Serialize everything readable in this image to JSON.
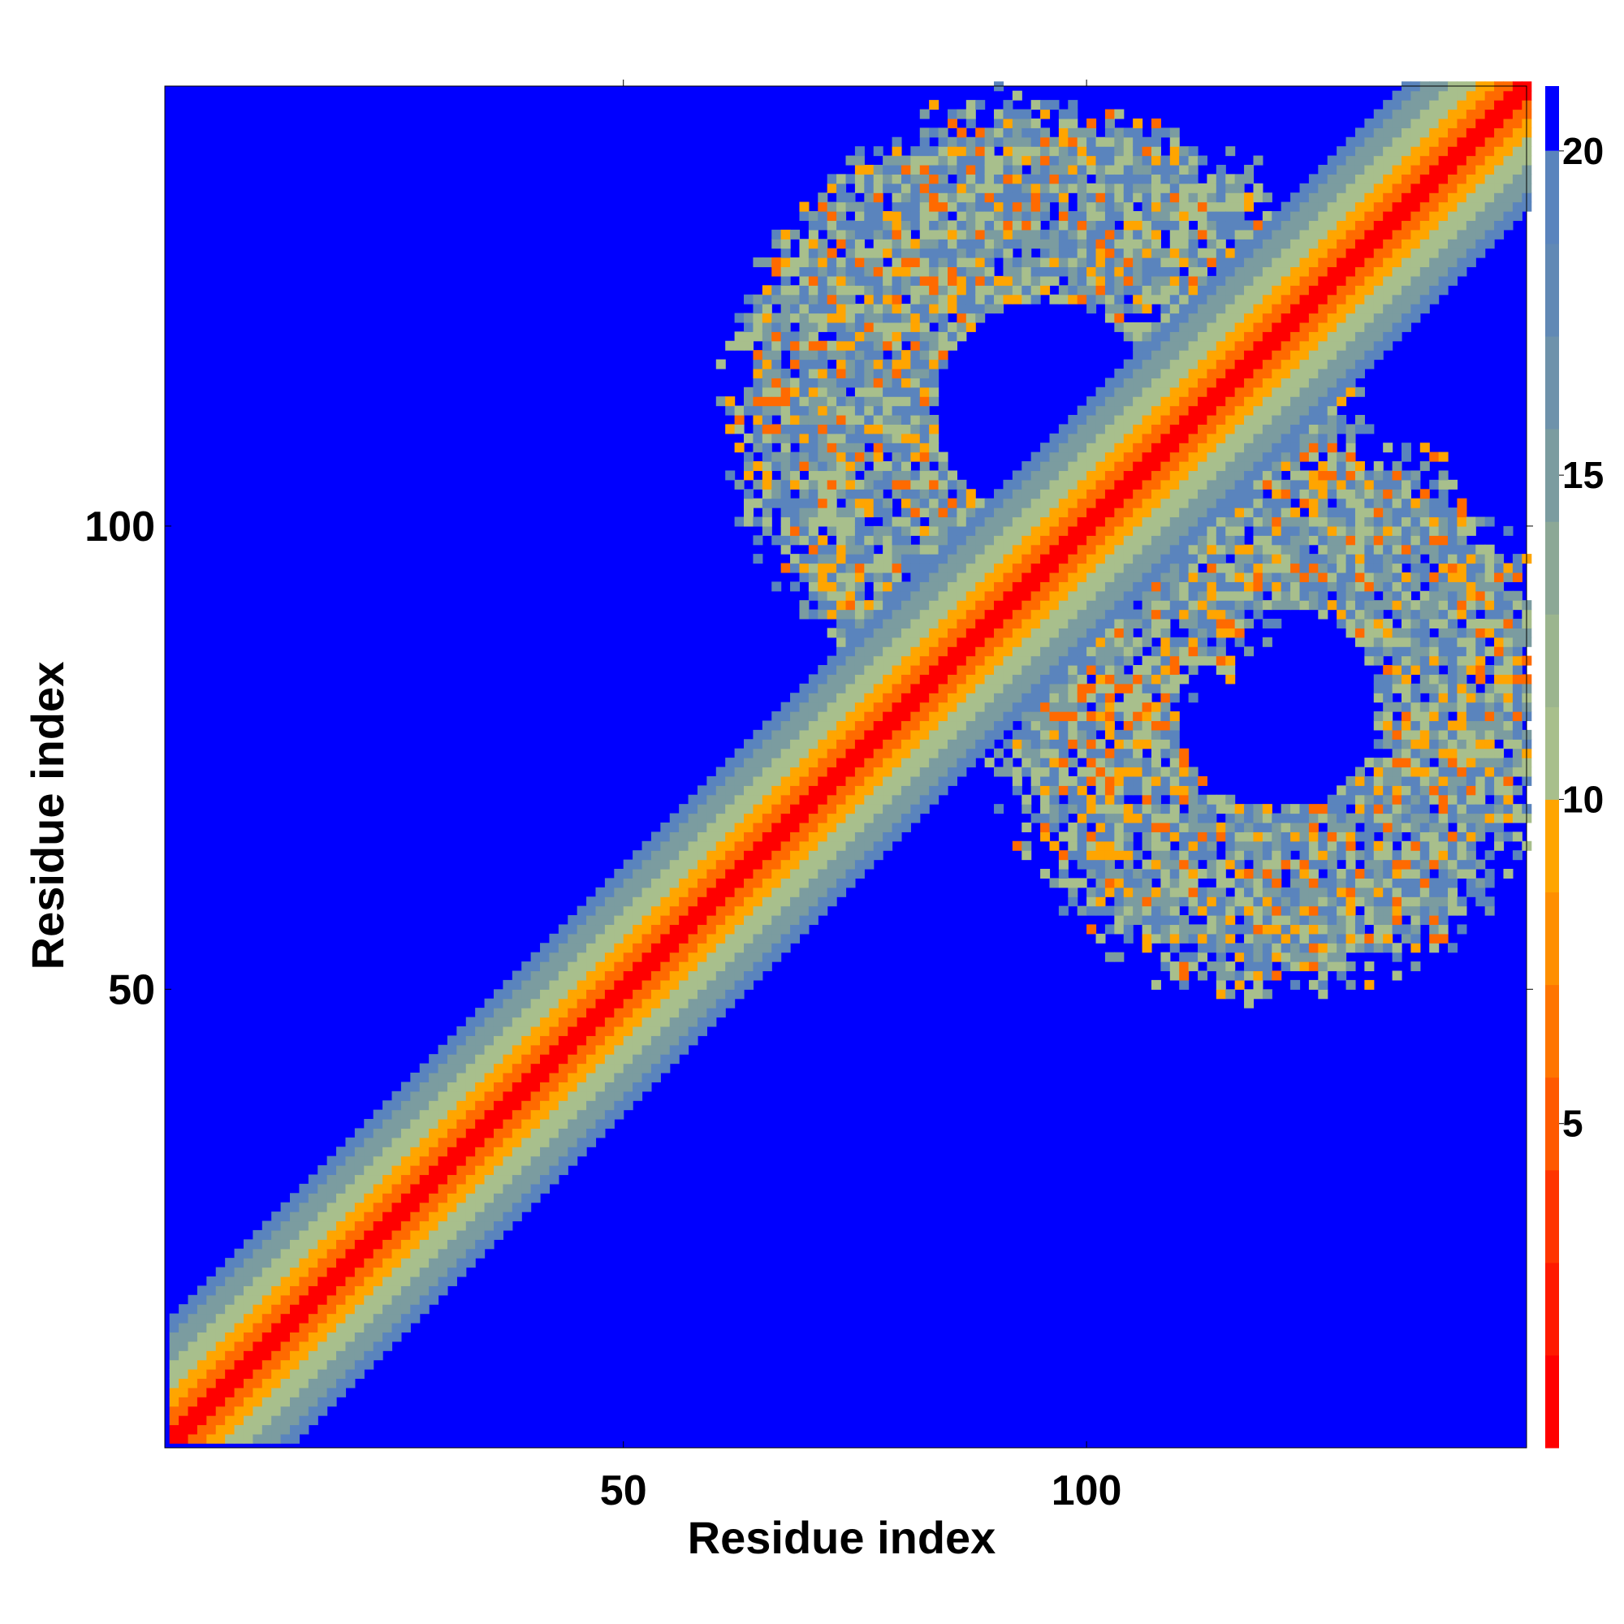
{
  "chart_data": {
    "type": "heatmap",
    "title": "",
    "xlabel": "Residue index",
    "ylabel": "Residue index",
    "n_residues": 147,
    "xlim": [
      1,
      147
    ],
    "ylim": [
      1,
      147
    ],
    "xticks": [
      50,
      100
    ],
    "yticks": [
      50,
      100
    ],
    "colorbar": {
      "ticks": [
        5,
        10,
        15,
        20
      ],
      "range": [
        0,
        21
      ],
      "overflow_color": "#0000ff",
      "colors": [
        "#ff0000",
        "#ff1a00",
        "#ff3500",
        "#ff5a00",
        "#ff7500",
        "#ff8f00",
        "#ffa500",
        "#a8bf8c",
        "#9bb58e",
        "#8ca896",
        "#7b9ca0",
        "#6e92ab",
        "#6189b5",
        "#5a84bd"
      ]
    },
    "band_colors": [
      "#ff0000",
      "#ff6a00",
      "#ffa500",
      "#a8bf8c",
      "#7b9ca0",
      "#5a84bd"
    ],
    "features": {
      "diagonal_band_half_width": 13,
      "lobes": [
        {
          "center_x": 95,
          "center_y": 112,
          "inner_radius": 12,
          "outer_radius": 33
        },
        {
          "center_x": 120,
          "center_y": 80,
          "inner_radius": 11,
          "outer_radius": 30
        }
      ]
    },
    "grid": false
  }
}
